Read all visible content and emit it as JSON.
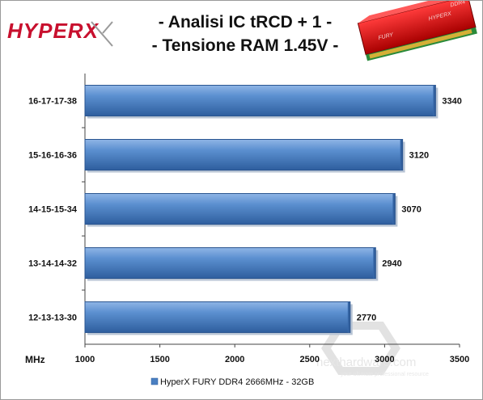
{
  "branding": {
    "logo_text": "HYPERX",
    "watermark_text": "nexthardware.com",
    "watermark_sub": "your ultimate professional resource",
    "ram_module_labels": [
      "FURY",
      "HYPERX",
      "DDR4"
    ]
  },
  "chart_data": {
    "type": "bar",
    "orientation": "horizontal",
    "title_lines": [
      "- Analisi IC  tRCD + 1 -",
      "- Tensione RAM 1.45V -"
    ],
    "categories": [
      "16-17-17-38",
      "15-16-16-36",
      "14-15-15-34",
      "13-14-14-32",
      "12-13-13-30"
    ],
    "series": [
      {
        "name": "HyperX FURY DDR4 2666MHz - 32GB",
        "values": [
          3340,
          3120,
          3070,
          2940,
          2770
        ],
        "color": "#4a7fc1"
      }
    ],
    "xlabel": "MHz",
    "xlim": [
      1000,
      3500
    ],
    "xticks": [
      1000,
      1500,
      2000,
      2500,
      3000,
      3500
    ],
    "grid": false,
    "legend_position": "bottom"
  }
}
